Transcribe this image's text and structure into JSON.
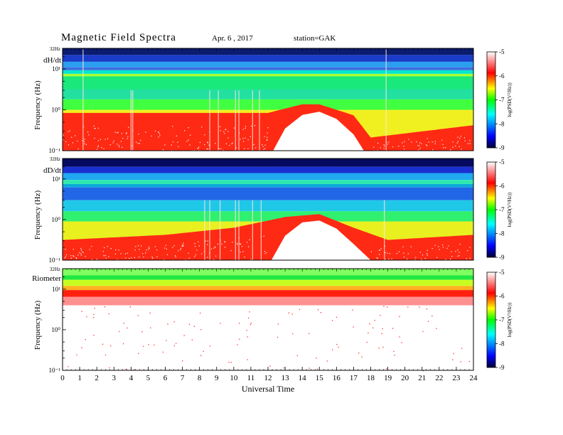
{
  "header": {
    "title": "Magnetic  Field  Spectra",
    "date": "Apr. 6  , 2017",
    "station": "station=GAK"
  },
  "colors": {
    "colormap": [
      "#000033",
      "#0000ff",
      "#00ffff",
      "#00ff00",
      "#ffff00",
      "#ff0000",
      "#ffffff"
    ]
  },
  "chart_data": [
    {
      "type": "heatmap",
      "panel_label": "dH/dt",
      "ylabel": "Frequency  (Hz)",
      "y_scale": "log",
      "y_ticks": [
        "10⁻¹",
        "10⁰",
        "10¹",
        "32Hz"
      ],
      "ylim": [
        0.1,
        32
      ],
      "colorbar": {
        "label": "log(PSD(V²/Hz))",
        "ticks": [
          "-5",
          "-6",
          "-7",
          "-8",
          "-9"
        ],
        "range": [
          -9,
          -5
        ]
      },
      "features": {
        "low_freq_cutoff_hz": [
          [
            0,
            0.8
          ],
          [
            8,
            0.8
          ],
          [
            12,
            0.8
          ],
          [
            14,
            1.3
          ],
          [
            15,
            1.3
          ],
          [
            17,
            0.7
          ],
          [
            18,
            0.2
          ],
          [
            24,
            0.4
          ]
        ]
      }
    },
    {
      "type": "heatmap",
      "panel_label": "dD/dt",
      "ylabel": "Frequency  (Hz)",
      "y_scale": "log",
      "y_ticks": [
        "10⁻¹",
        "10⁰",
        "10¹",
        "32Hz"
      ],
      "ylim": [
        0.1,
        32
      ],
      "colorbar": {
        "label": "log(PSD(V²/Hz))",
        "ticks": [
          "-5",
          "-6",
          "-7",
          "-8",
          "-9"
        ],
        "range": [
          -9,
          -5
        ]
      },
      "features": {
        "low_freq_cutoff_hz": [
          [
            0,
            0.3
          ],
          [
            6,
            0.4
          ],
          [
            10,
            0.6
          ],
          [
            13,
            1.1
          ],
          [
            15,
            1.3
          ],
          [
            17,
            0.6
          ],
          [
            19,
            0.3
          ],
          [
            24,
            0.4
          ]
        ]
      }
    },
    {
      "type": "heatmap",
      "panel_label": "Riometer",
      "ylabel": "Frequency  (Hz)",
      "y_scale": "log",
      "y_ticks": [
        "10⁻¹",
        "10⁰",
        "10¹",
        "32Hz"
      ],
      "ylim": [
        0.1,
        32
      ],
      "colorbar": {
        "label": "log(PSD(V²/Hz))",
        "ticks": [
          "-5",
          "-6",
          "-7",
          "-8",
          "-9"
        ],
        "range": [
          -9,
          -5
        ]
      }
    }
  ],
  "x_axis": {
    "label": "Universal Time",
    "ticks": [
      "0",
      "1",
      "2",
      "3",
      "4",
      "5",
      "6",
      "7",
      "8",
      "9",
      "10",
      "11",
      "12",
      "13",
      "14",
      "15",
      "16",
      "17",
      "18",
      "19",
      "20",
      "21",
      "22",
      "23",
      "24"
    ],
    "xlim": [
      0,
      24
    ]
  }
}
